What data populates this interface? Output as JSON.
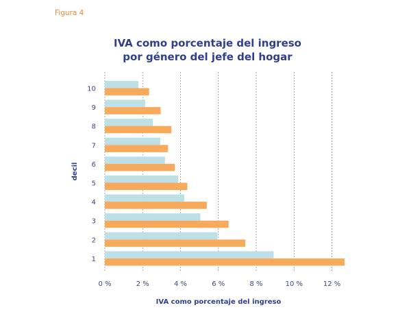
{
  "figure_label": "Figura 4",
  "chart_data": {
    "type": "bar",
    "orientation": "horizontal",
    "title": [
      "IVA como porcentaje del ingreso",
      "por género del jefe del hogar"
    ],
    "xlabel": "IVA como porcentaje del ingreso",
    "ylabel": "decil",
    "categories": [
      "10",
      "9",
      "8",
      "7",
      "6",
      "5",
      "4",
      "3",
      "2",
      "1"
    ],
    "series": [
      {
        "color": "#bde0e6",
        "values": [
          1.77,
          2.13,
          2.54,
          2.93,
          3.18,
          3.88,
          4.2,
          5.05,
          5.95,
          8.92
        ]
      },
      {
        "color": "#f8aa5c",
        "values": [
          2.34,
          2.95,
          3.52,
          3.34,
          3.7,
          4.36,
          5.39,
          6.54,
          7.43,
          12.67
        ]
      }
    ],
    "xlim": [
      0,
      12.7
    ],
    "xticks": [
      0,
      2,
      4,
      6,
      8,
      10,
      12
    ],
    "xtick_labels": [
      "0 %",
      "2 %",
      "4 %",
      "6 %",
      "8 %",
      "10 %",
      "12 %"
    ],
    "grid": "vertical dashed",
    "legend": "none"
  }
}
